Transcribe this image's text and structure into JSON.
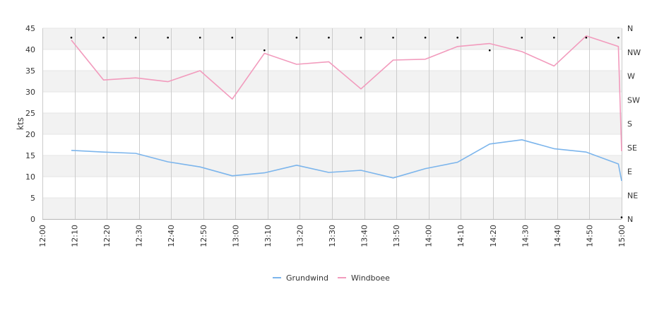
{
  "chart_data": {
    "type": "line",
    "ylabel": "kts",
    "ylim": [
      0,
      45
    ],
    "y_ticks": [
      "0",
      "5",
      "10",
      "15",
      "20",
      "25",
      "30",
      "35",
      "40",
      "45"
    ],
    "x_ticks": [
      "12:00",
      "12:10",
      "12:20",
      "12:30",
      "12:40",
      "12:50",
      "13:00",
      "13:10",
      "13:20",
      "13:30",
      "13:40",
      "13:50",
      "14:00",
      "14:10",
      "14:20",
      "14:30",
      "14:40",
      "14:50",
      "15:00"
    ],
    "right_axis_labels": [
      "N",
      "NW",
      "W",
      "SW",
      "S",
      "SE",
      "E",
      "NE",
      "N"
    ],
    "grid": true,
    "legend_position": "bottom",
    "series": [
      {
        "name": "Grundwind",
        "color": "#7cb5ec",
        "x": [
          "12:09",
          "12:19",
          "12:29",
          "12:39",
          "12:49",
          "12:59",
          "13:09",
          "13:19",
          "13:29",
          "13:39",
          "13:49",
          "13:59",
          "14:09",
          "14:19",
          "14:29",
          "14:39",
          "14:49",
          "14:59",
          "15:00"
        ],
        "values": [
          16.2,
          15.8,
          15.5,
          13.5,
          12.3,
          10.2,
          10.9,
          12.7,
          11.0,
          11.5,
          9.7,
          11.9,
          13.4,
          17.7,
          18.7,
          16.6,
          15.8,
          13.0,
          9.0
        ]
      },
      {
        "name": "Windboee",
        "color": "#f29bbd",
        "x": [
          "12:09",
          "12:19",
          "12:29",
          "12:39",
          "12:49",
          "12:59",
          "13:09",
          "13:19",
          "13:29",
          "13:39",
          "13:49",
          "13:59",
          "14:09",
          "14:19",
          "14:29",
          "14:39",
          "14:49",
          "14:59",
          "15:00"
        ],
        "values": [
          42.2,
          32.8,
          33.3,
          32.4,
          35.0,
          28.3,
          39.1,
          36.5,
          37.1,
          30.7,
          37.5,
          37.7,
          40.7,
          41.4,
          39.5,
          36.1,
          43.2,
          40.7,
          16.0
        ]
      }
    ],
    "direction_markers": {
      "x": [
        "12:09",
        "12:19",
        "12:29",
        "12:39",
        "12:49",
        "12:59",
        "13:09",
        "13:19",
        "13:29",
        "13:39",
        "13:49",
        "13:59",
        "14:09",
        "14:19",
        "14:29",
        "14:39",
        "14:49",
        "14:59",
        "15:00"
      ],
      "values": [
        42.8,
        42.8,
        42.8,
        42.8,
        42.8,
        42.8,
        39.8,
        42.8,
        42.8,
        42.8,
        42.8,
        42.8,
        42.8,
        39.8,
        42.8,
        42.8,
        42.8,
        42.8,
        0.4
      ],
      "color": "#000000"
    }
  }
}
